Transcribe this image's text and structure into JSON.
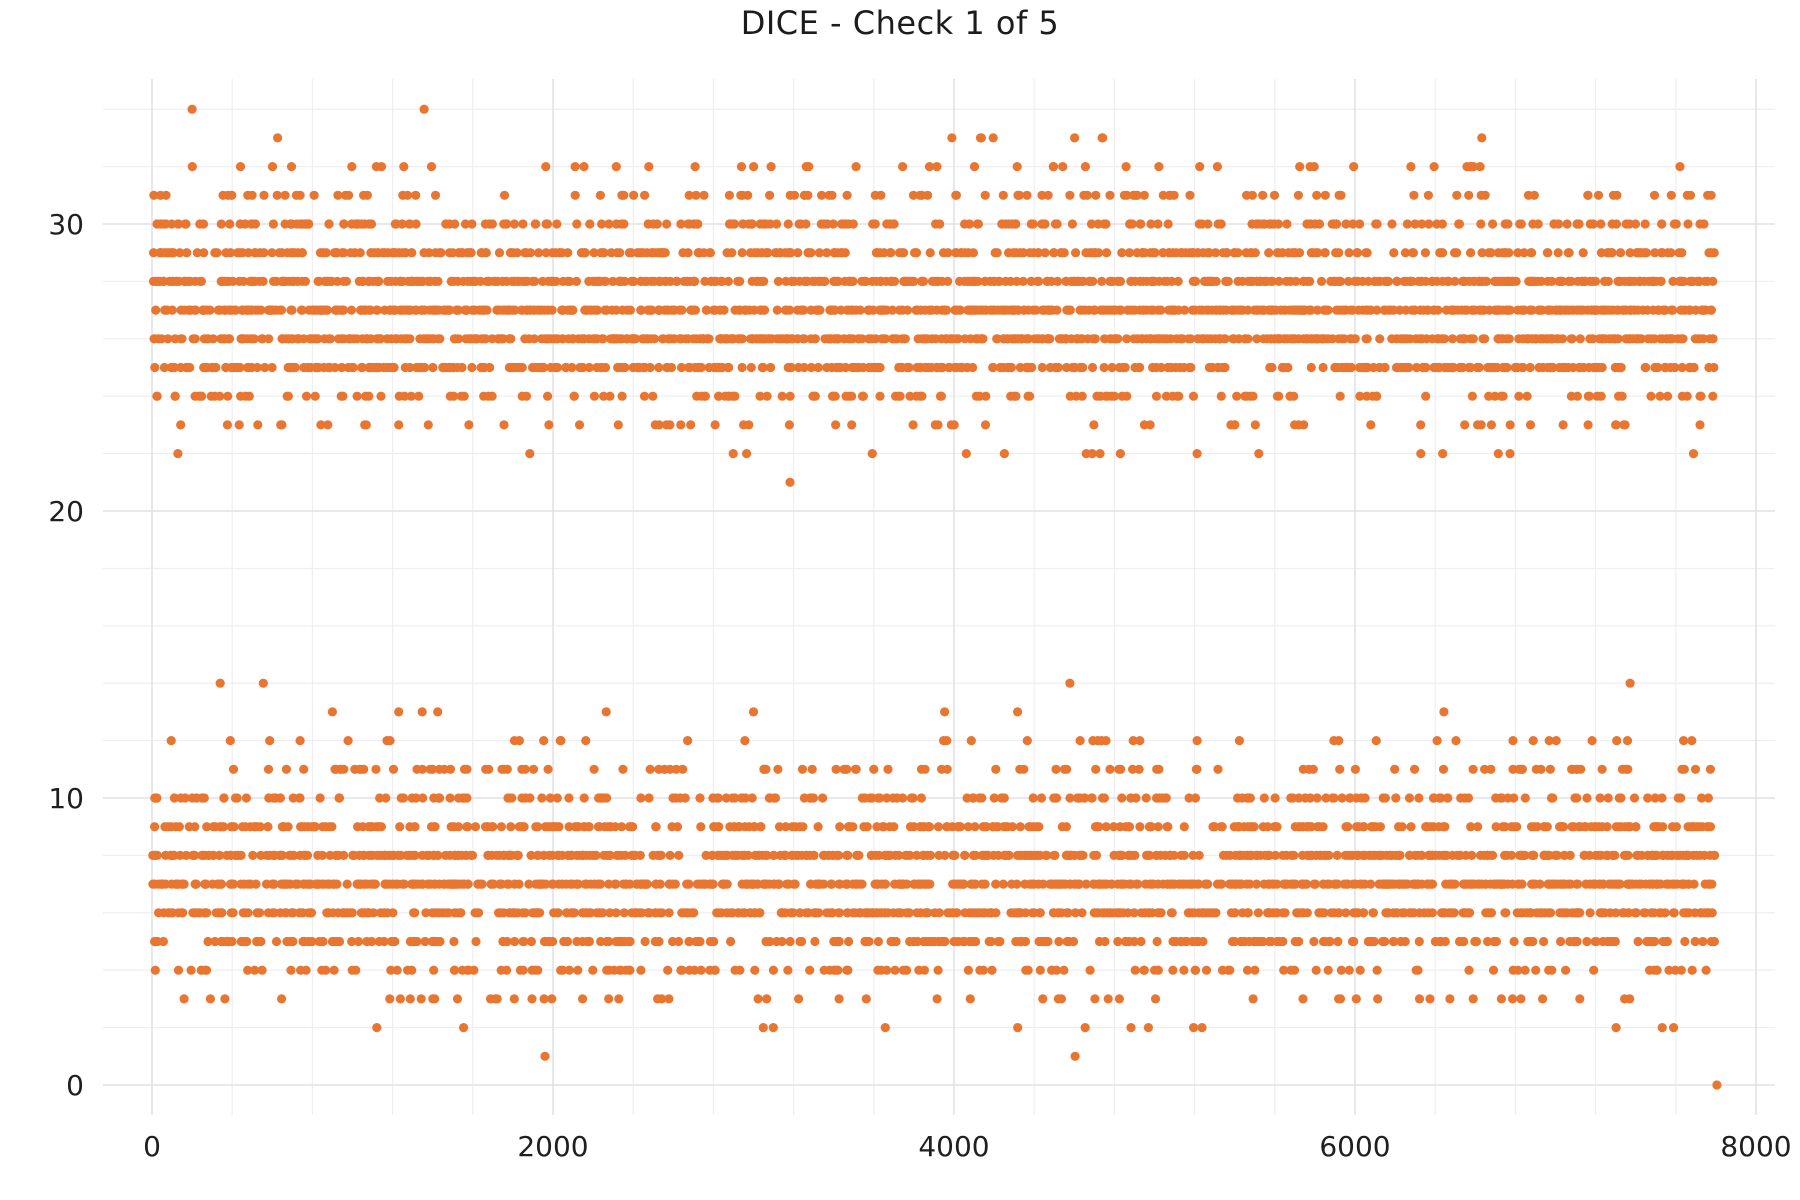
{
  "page": {
    "title": "DICE - Check 1 of 5"
  },
  "chart_data": {
    "type": "scatter",
    "title": "DICE - Check 1 of 5",
    "xlabel": "",
    "ylabel": "",
    "legend": "none",
    "x_range": [
      0,
      8000
    ],
    "y_display_range": [
      0,
      34
    ],
    "x_ticks": [
      0,
      2000,
      4000,
      6000,
      8000
    ],
    "y_ticks": [
      0,
      10,
      20,
      30
    ],
    "x_minor_interval": 400,
    "y_minor_interval": 2,
    "grid": "major+minor",
    "x_data_range": [
      0,
      7805
    ],
    "point_color": "#e87630",
    "point_radius_px": 4.6,
    "text_color": "#1f1f1f",
    "major_grid_color": "#e1e1e9",
    "minor_grid_color": "#ededf3",
    "background_color": "#ffffff",
    "seed": 11,
    "bands": [
      {
        "name": "upper-band",
        "description": "cluster of integer y-values 21-34, peak near 26-27, x spread uniformly 0-7800",
        "rows": [
          {
            "y": 34,
            "n_random": 0,
            "fixed_x": [
              200,
              1357
            ]
          },
          {
            "y": 33,
            "n_random": 9,
            "fixed_x": []
          },
          {
            "y": 32,
            "n_random": 46,
            "fixed_x": []
          },
          {
            "y": 31,
            "n_random": 108,
            "fixed_x": []
          },
          {
            "y": 30,
            "n_random": 225,
            "fixed_x": []
          },
          {
            "y": 29,
            "n_random": 340,
            "fixed_x": []
          },
          {
            "y": 28,
            "n_random": 520,
            "fixed_x": []
          },
          {
            "y": 27,
            "n_random": 600,
            "fixed_x": []
          },
          {
            "y": 26,
            "n_random": 575,
            "fixed_x": []
          },
          {
            "y": 25,
            "n_random": 380,
            "fixed_x": []
          },
          {
            "y": 24,
            "n_random": 150,
            "fixed_x": []
          },
          {
            "y": 23,
            "n_random": 60,
            "fixed_x": []
          },
          {
            "y": 22,
            "n_random": 18,
            "fixed_x": []
          },
          {
            "y": 21,
            "n_random": 0,
            "fixed_x": [
              3182
            ]
          }
        ]
      },
      {
        "name": "lower-band",
        "description": "cluster of integer y-values 0-14, peak near 7-8, x spread uniformly 0-7800",
        "rows": [
          {
            "y": 14,
            "n_random": 0,
            "fixed_x": [
              340,
              555,
              4578,
              7372
            ]
          },
          {
            "y": 13,
            "n_random": 9,
            "fixed_x": []
          },
          {
            "y": 12,
            "n_random": 42,
            "fixed_x": []
          },
          {
            "y": 11,
            "n_random": 108,
            "fixed_x": []
          },
          {
            "y": 10,
            "n_random": 200,
            "fixed_x": []
          },
          {
            "y": 9,
            "n_random": 320,
            "fixed_x": []
          },
          {
            "y": 8,
            "n_random": 500,
            "fixed_x": []
          },
          {
            "y": 7,
            "n_random": 580,
            "fixed_x": []
          },
          {
            "y": 6,
            "n_random": 460,
            "fixed_x": []
          },
          {
            "y": 5,
            "n_random": 260,
            "fixed_x": []
          },
          {
            "y": 4,
            "n_random": 140,
            "fixed_x": []
          },
          {
            "y": 3,
            "n_random": 55,
            "fixed_x": []
          },
          {
            "y": 2,
            "n_random": 14,
            "fixed_x": []
          },
          {
            "y": 1,
            "n_random": 0,
            "fixed_x": [
              1960,
              4604
            ]
          },
          {
            "y": 0,
            "n_random": 0,
            "fixed_x": [
              7805
            ]
          }
        ]
      }
    ]
  }
}
